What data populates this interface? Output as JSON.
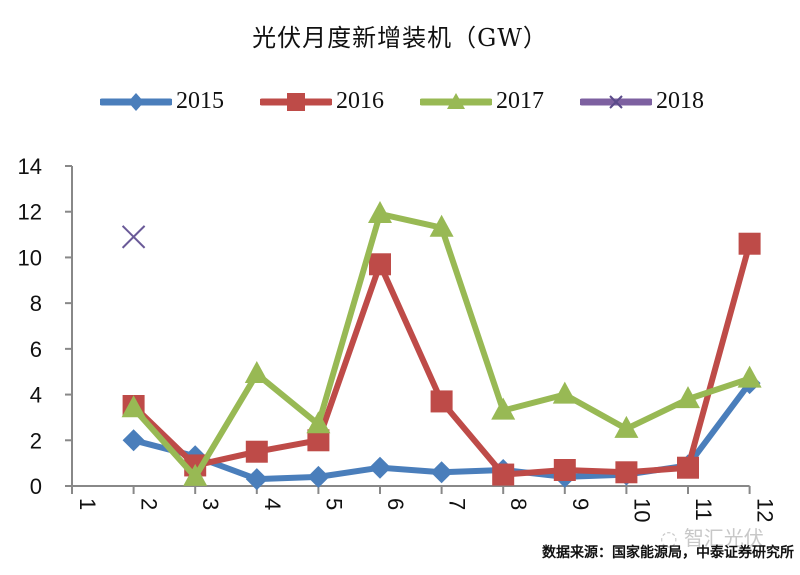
{
  "title": "光伏月度新增装机（GW）",
  "source_note": "数据来源：国家能源局，中泰证券研究所",
  "watermark": "智汇光伏",
  "colors": {
    "2015": "#4a7ebb",
    "2016": "#be4b48",
    "2017": "#98b954",
    "2018": "#7d60a0",
    "axis": "#888888"
  },
  "legend": [
    {
      "label": "2015",
      "marker": "diamond"
    },
    {
      "label": "2016",
      "marker": "square"
    },
    {
      "label": "2017",
      "marker": "triangle"
    },
    {
      "label": "2018",
      "marker": "x"
    }
  ],
  "chart_data": {
    "type": "line",
    "title": "光伏月度新增装机（GW）",
    "xlabel": "",
    "ylabel": "",
    "categories": [
      "1",
      "2",
      "3",
      "4",
      "5",
      "6",
      "7",
      "8",
      "9",
      "10",
      "11",
      "12"
    ],
    "ylim": [
      0,
      14
    ],
    "yticks": [
      0,
      2,
      4,
      6,
      8,
      10,
      12,
      14
    ],
    "grid": false,
    "legend_position": "top",
    "series": [
      {
        "name": "2015",
        "marker": "diamond",
        "values": [
          null,
          2.0,
          1.3,
          0.3,
          0.4,
          0.8,
          0.6,
          0.7,
          0.4,
          0.5,
          0.9,
          4.5
        ]
      },
      {
        "name": "2016",
        "marker": "square",
        "values": [
          null,
          3.5,
          0.9,
          1.5,
          2.0,
          9.7,
          3.7,
          0.5,
          0.7,
          0.6,
          0.8,
          10.6
        ]
      },
      {
        "name": "2017",
        "marker": "triangle",
        "values": [
          null,
          3.4,
          0.4,
          4.9,
          2.7,
          11.9,
          11.3,
          3.3,
          4.0,
          2.5,
          3.8,
          4.7
        ]
      },
      {
        "name": "2018",
        "marker": "x",
        "values": [
          null,
          10.9,
          null,
          null,
          null,
          null,
          null,
          null,
          null,
          null,
          null,
          null
        ]
      }
    ],
    "annotations": [
      "数据来源：国家能源局，中泰证券研究所"
    ]
  }
}
